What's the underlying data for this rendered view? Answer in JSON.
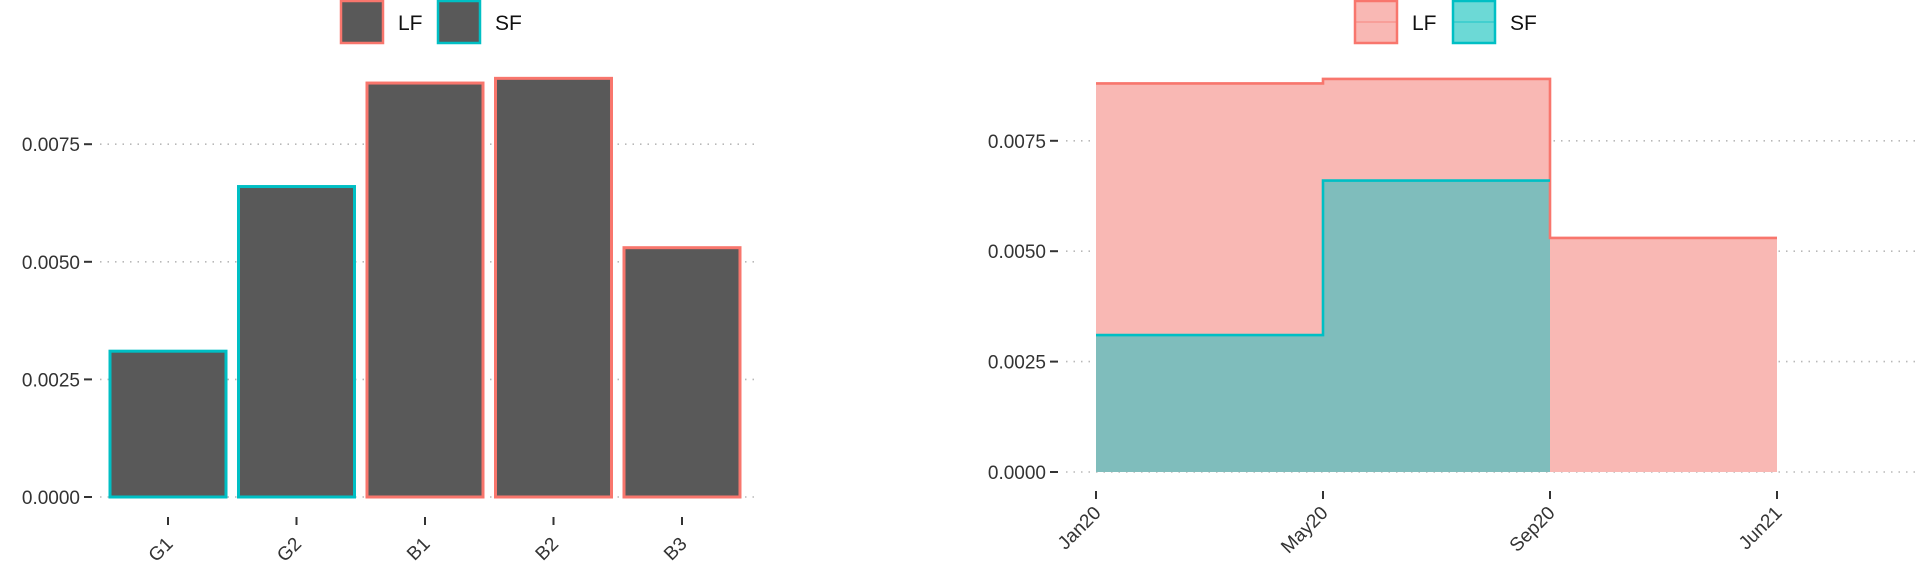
{
  "colors": {
    "LF": "#F8766D",
    "SF": "#00BFC4",
    "bar_fill": "#595959",
    "LF_area": "#F9B8B4",
    "SF_area": "#7FBDBC",
    "grid": "#b8b8b8",
    "text": "#333333"
  },
  "chart_data": [
    {
      "type": "bar",
      "categories": [
        "G1",
        "G2",
        "B1",
        "B2",
        "B3"
      ],
      "values": [
        0.0031,
        0.0066,
        0.0088,
        0.0089,
        0.0053
      ],
      "groups": [
        "SF",
        "SF",
        "LF",
        "LF",
        "LF"
      ],
      "legend": [
        "LF",
        "SF"
      ],
      "legend_position": "top",
      "yticks": [
        "0.0000",
        "0.0025",
        "0.0050",
        "0.0075"
      ],
      "ylim": [
        0,
        0.0089
      ],
      "grid": "horizontal dotted"
    },
    {
      "type": "area",
      "step": true,
      "xticks": [
        "Jan20",
        "May20",
        "Sep20",
        "Jun21"
      ],
      "yticks": [
        "0.0000",
        "0.0025",
        "0.0050",
        "0.0075"
      ],
      "ylim": [
        0,
        0.0089
      ],
      "legend": [
        "LF",
        "SF"
      ],
      "legend_position": "top",
      "grid": "horizontal dotted",
      "series": [
        {
          "name": "LF",
          "x": [
            "Jan20",
            "May20",
            "Sep20",
            "Jun21"
          ],
          "values": [
            0.0088,
            0.0089,
            0.0053,
            0.0053
          ]
        },
        {
          "name": "SF",
          "x": [
            "Jan20",
            "May20",
            "Sep20"
          ],
          "values": [
            0.0031,
            0.0066,
            0.0066
          ]
        }
      ]
    }
  ]
}
